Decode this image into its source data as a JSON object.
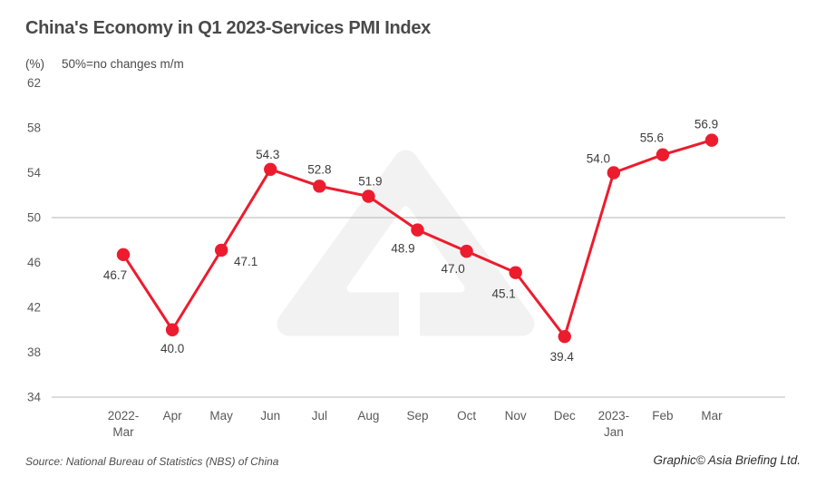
{
  "header": {
    "title": "China's Economy in Q1 2023-Services PMI Index",
    "unit_label": "(%)",
    "subtitle": "50%=no changes m/m"
  },
  "footer": {
    "source": "Source: National Bureau of Statistics (NBS) of China",
    "credit": "Graphic© Asia Briefing Ltd."
  },
  "icons": {
    "watermark": "asia-briefing-mountain-logo"
  },
  "colors": {
    "line": "#ec1c2e",
    "marker": "#ec1c2e",
    "grid_line": "#c3c3c3",
    "axis_line": "#d2d2d2",
    "watermark": "#f2f2f2",
    "watermark_cut": "#ffffff",
    "title_text": "#4a4a4a",
    "tick_text": "#595959",
    "value_label_text": "#3d3d3d"
  },
  "chart_data": {
    "type": "line",
    "title": "China's Economy in Q1 2023-Services PMI Index",
    "xlabel": "",
    "ylabel": "(%)",
    "subtitle": "50%=no changes m/m",
    "series_name": "Services PMI Index",
    "categories": [
      "2022-Mar",
      "Apr",
      "May",
      "Jun",
      "Jul",
      "Aug",
      "Sep",
      "Oct",
      "Nov",
      "Dec",
      "2023-Jan",
      "Feb",
      "Mar"
    ],
    "tick_labels": [
      [
        "2022-",
        "Mar"
      ],
      [
        "Apr"
      ],
      [
        "May"
      ],
      [
        "Jun"
      ],
      [
        "Jul"
      ],
      [
        "Aug"
      ],
      [
        "Sep"
      ],
      [
        "Oct"
      ],
      [
        "Nov"
      ],
      [
        "Dec"
      ],
      [
        "2023-",
        "Jan"
      ],
      [
        "Feb"
      ],
      [
        "Mar"
      ]
    ],
    "values": [
      46.7,
      40.0,
      47.1,
      54.3,
      52.8,
      51.9,
      48.9,
      47.0,
      45.1,
      39.4,
      54.0,
      55.6,
      56.9
    ],
    "ylim": [
      34,
      62
    ],
    "yticks": [
      34,
      38,
      42,
      46,
      50,
      54,
      58,
      62
    ],
    "reference_line": 50,
    "grid": "reference-line-only",
    "legend": "none",
    "marker": "circle"
  }
}
